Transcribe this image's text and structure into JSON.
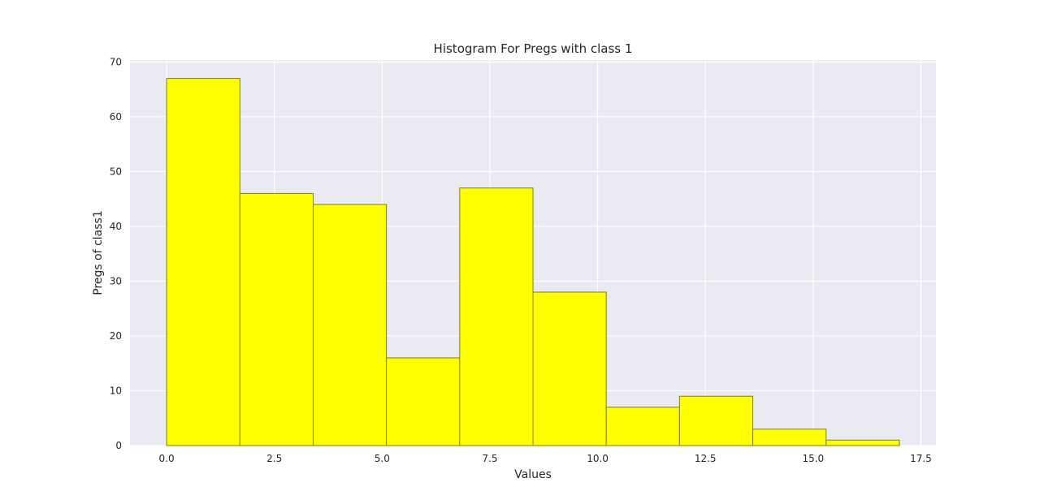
{
  "chart_data": {
    "type": "bar",
    "title": "Histogram For Pregs with class 1",
    "xlabel": "Values",
    "ylabel": "Pregs of class1",
    "bin_edges": [
      0.0,
      1.7,
      3.4,
      5.1,
      6.8,
      8.5,
      10.2,
      11.9,
      13.6,
      15.3,
      17.0
    ],
    "values": [
      67,
      46,
      44,
      16,
      47,
      28,
      7,
      9,
      3,
      1
    ],
    "xlim": [
      -0.85,
      17.85
    ],
    "ylim": [
      0,
      70.35
    ],
    "xticks": [
      0.0,
      2.5,
      5.0,
      7.5,
      10.0,
      12.5,
      15.0,
      17.5
    ],
    "xtick_labels": [
      "0.0",
      "2.5",
      "5.0",
      "7.5",
      "10.0",
      "12.5",
      "15.0",
      "17.5"
    ],
    "yticks": [
      0,
      10,
      20,
      30,
      40,
      50,
      60,
      70
    ],
    "ytick_labels": [
      "0",
      "10",
      "20",
      "30",
      "40",
      "50",
      "60",
      "70"
    ],
    "grid": true,
    "colors": {
      "bar_fill": "#ffff00",
      "bar_edge": "#808000",
      "plot_background": "#eaeaf2",
      "grid": "#ffffff",
      "text": "#262626"
    }
  }
}
